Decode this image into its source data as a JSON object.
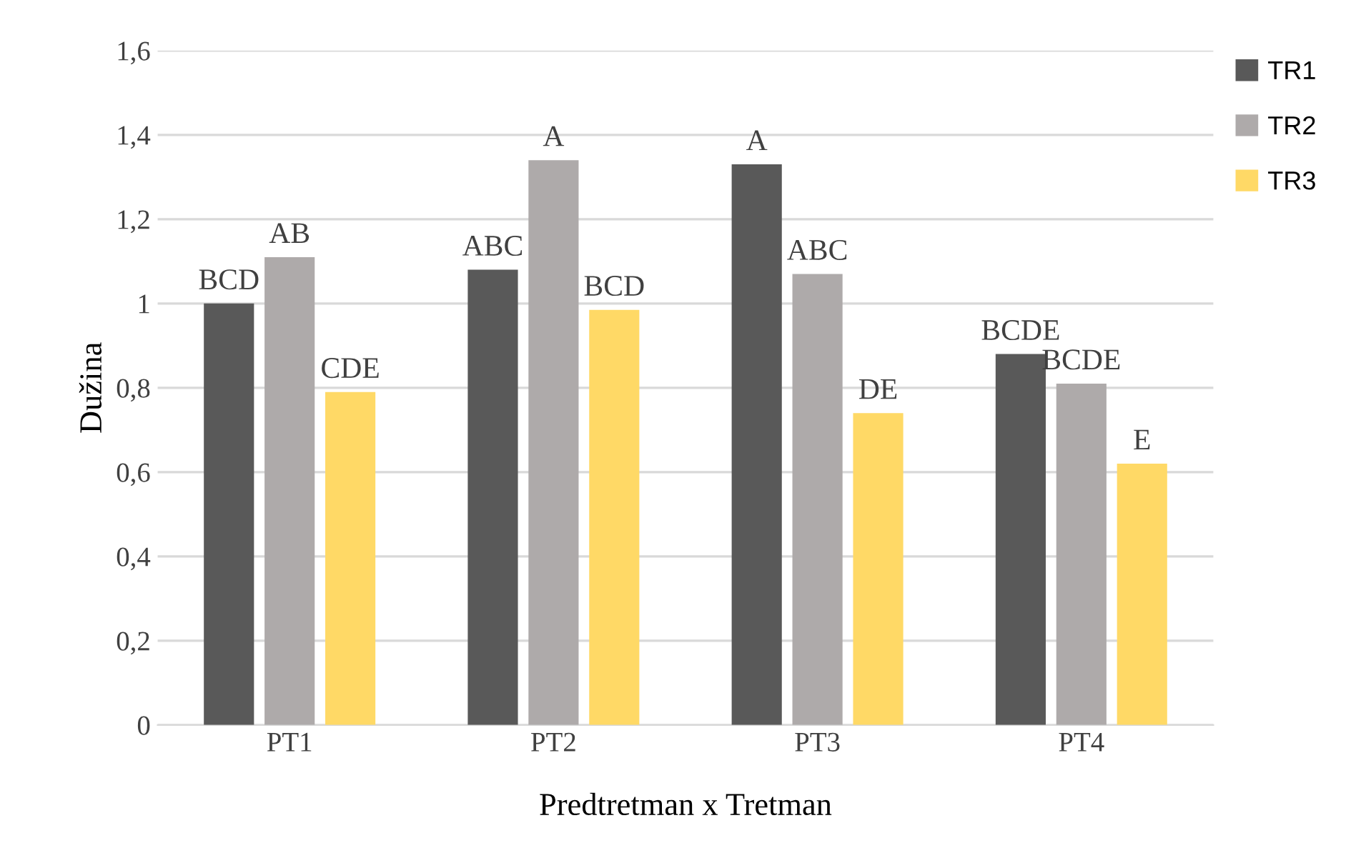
{
  "chart_data": {
    "type": "bar",
    "xlabel": "Predtretman x Tretman",
    "ylabel": "Dužina",
    "categories": [
      "PT1",
      "PT2",
      "PT3",
      "PT4"
    ],
    "series": [
      {
        "name": "TR1",
        "color": "#595959",
        "values": [
          1.0,
          1.08,
          1.33,
          0.88
        ],
        "value_labels": [
          "BCD",
          "ABC",
          "A",
          "BCDE"
        ]
      },
      {
        "name": "TR2",
        "color": "#aeaaaa",
        "values": [
          1.11,
          1.34,
          1.07,
          0.81
        ],
        "value_labels": [
          "AB",
          "A",
          "ABC",
          "BCDE"
        ]
      },
      {
        "name": "TR3",
        "color": "#ffd966",
        "values": [
          0.79,
          0.985,
          0.74,
          0.62
        ],
        "value_labels": [
          "CDE",
          "BCD",
          "DE",
          "E"
        ]
      }
    ],
    "ylim": [
      0,
      1.6
    ],
    "yticks": [
      {
        "value": 0,
        "label": "0"
      },
      {
        "value": 0.2,
        "label": "0,2"
      },
      {
        "value": 0.4,
        "label": "0,4"
      },
      {
        "value": 0.6,
        "label": "0,6"
      },
      {
        "value": 0.8,
        "label": "0,8"
      },
      {
        "value": 1,
        "label": "1"
      },
      {
        "value": 1.2,
        "label": "1,2"
      },
      {
        "value": 1.4,
        "label": "1,4"
      },
      {
        "value": 1.6,
        "label": "1,6"
      }
    ],
    "grid": "y",
    "legend": "top right"
  }
}
